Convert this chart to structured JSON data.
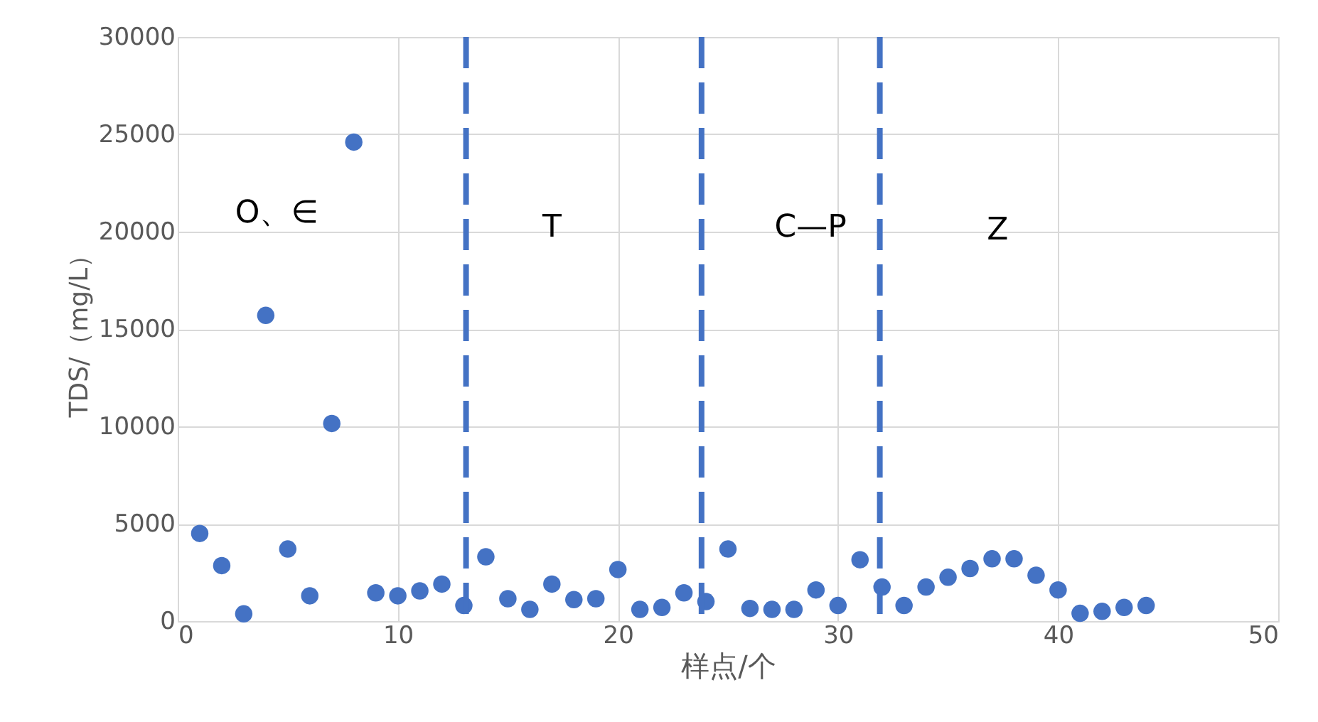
{
  "chart_data": {
    "type": "scatter",
    "xlabel": "样点/个",
    "ylabel": "TDS/（mg/L）",
    "x": [
      1,
      2,
      3,
      4,
      5,
      6,
      7,
      8,
      9,
      10,
      11,
      12,
      13,
      14,
      15,
      16,
      17,
      18,
      19,
      20,
      21,
      22,
      23,
      24,
      25,
      26,
      27,
      28,
      29,
      30,
      31,
      32,
      33,
      34,
      35,
      36,
      37,
      38,
      39,
      40,
      41,
      42,
      43,
      44
    ],
    "series": [
      {
        "color": "#4472c4",
        "values": [
          4500,
          2850,
          370,
          15700,
          3700,
          1300,
          10150,
          24600,
          1450,
          1300,
          1550,
          1900,
          800,
          3300,
          1150,
          600,
          1900,
          1100,
          1150,
          2650,
          600,
          700,
          1450,
          1000,
          3700,
          650,
          600,
          600,
          1600,
          800,
          3150,
          1750,
          800,
          1750,
          2250,
          2700,
          3200,
          3200,
          2350,
          1600,
          400,
          500,
          700,
          800
        ]
      }
    ],
    "xlim": [
      0,
      50
    ],
    "xticks": [
      0,
      10,
      20,
      30,
      40,
      50
    ],
    "ylim": [
      0,
      30000
    ],
    "yticks": [
      0,
      5000,
      10000,
      15000,
      20000,
      25000,
      30000
    ],
    "grid": true,
    "marker": "circle",
    "legend": false,
    "ref_lines": [
      {
        "axis": "x",
        "value": 13.1,
        "color": "#4472c4",
        "line_style": "dashed"
      },
      {
        "axis": "x",
        "value": 23.8,
        "color": "#4472c4",
        "line_style": "dashed"
      },
      {
        "axis": "x",
        "value": 31.9,
        "color": "#4472c4",
        "line_style": "dashed"
      }
    ],
    "annotations": [
      "O、∈",
      "T",
      "C—P",
      "Z"
    ]
  }
}
